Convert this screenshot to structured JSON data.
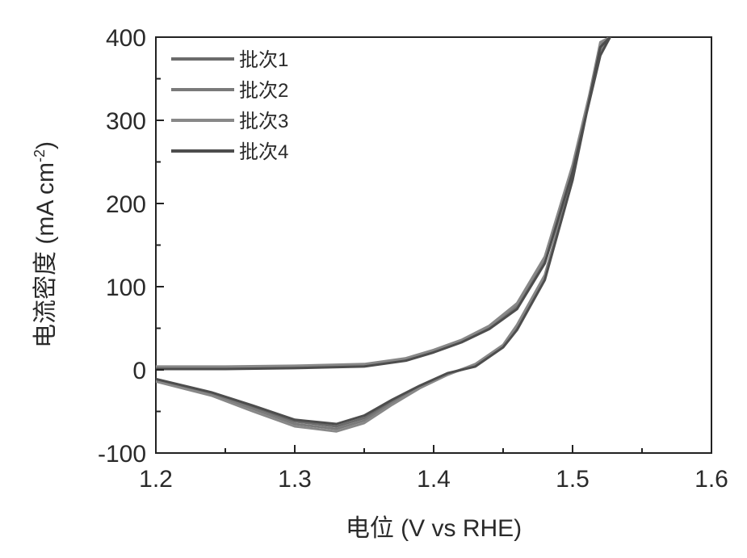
{
  "chart_data": {
    "type": "line",
    "title": "",
    "xlabel": "电位 (V vs RHE)",
    "ylabel_main": "电流密度 (mA cm",
    "ylabel_sup": "-2",
    "ylabel_close": ")",
    "xlim": [
      1.2,
      1.6
    ],
    "ylim": [
      -100,
      400
    ],
    "xticks": [
      1.2,
      1.3,
      1.4,
      1.5,
      1.6
    ],
    "xtick_labels": [
      "1.2",
      "1.3",
      "1.4",
      "1.5",
      "1.6"
    ],
    "yticks": [
      -100,
      0,
      100,
      200,
      300,
      400
    ],
    "ytick_labels": [
      "-100",
      "0",
      "100",
      "200",
      "300",
      "400"
    ],
    "grid": false,
    "legend_position": "top-left",
    "series": [
      {
        "name": "批次1",
        "color": "#6b6b6b",
        "forward": [
          [
            1.2,
            2
          ],
          [
            1.25,
            2
          ],
          [
            1.3,
            3
          ],
          [
            1.35,
            5
          ],
          [
            1.38,
            12
          ],
          [
            1.4,
            22
          ],
          [
            1.42,
            34
          ],
          [
            1.44,
            50
          ],
          [
            1.46,
            75
          ],
          [
            1.48,
            130
          ],
          [
            1.5,
            240
          ],
          [
            1.52,
            380
          ],
          [
            1.527,
            400
          ]
        ],
        "reverse": [
          [
            1.52,
            390
          ],
          [
            1.5,
            230
          ],
          [
            1.48,
            110
          ],
          [
            1.46,
            50
          ],
          [
            1.45,
            28
          ],
          [
            1.43,
            5
          ],
          [
            1.41,
            -5
          ],
          [
            1.39,
            -20
          ],
          [
            1.37,
            -38
          ],
          [
            1.35,
            -58
          ],
          [
            1.33,
            -68
          ],
          [
            1.3,
            -62
          ],
          [
            1.27,
            -45
          ],
          [
            1.24,
            -28
          ],
          [
            1.2,
            -12
          ]
        ]
      },
      {
        "name": "批次2",
        "color": "#7a7a7a",
        "forward": [
          [
            1.2,
            3
          ],
          [
            1.25,
            3
          ],
          [
            1.3,
            4
          ],
          [
            1.35,
            6
          ],
          [
            1.38,
            13
          ],
          [
            1.4,
            23
          ],
          [
            1.42,
            35
          ],
          [
            1.44,
            52
          ],
          [
            1.46,
            78
          ],
          [
            1.48,
            133
          ],
          [
            1.5,
            243
          ],
          [
            1.52,
            383
          ],
          [
            1.527,
            400
          ]
        ],
        "reverse": [
          [
            1.52,
            392
          ],
          [
            1.5,
            232
          ],
          [
            1.48,
            112
          ],
          [
            1.46,
            52
          ],
          [
            1.45,
            29
          ],
          [
            1.43,
            6
          ],
          [
            1.41,
            -5
          ],
          [
            1.39,
            -21
          ],
          [
            1.37,
            -40
          ],
          [
            1.35,
            -61
          ],
          [
            1.33,
            -71
          ],
          [
            1.3,
            -65
          ],
          [
            1.27,
            -47
          ],
          [
            1.24,
            -29
          ],
          [
            1.2,
            -13
          ]
        ]
      },
      {
        "name": "批次3",
        "color": "#888888",
        "forward": [
          [
            1.2,
            4
          ],
          [
            1.25,
            4
          ],
          [
            1.3,
            5
          ],
          [
            1.35,
            7
          ],
          [
            1.38,
            14
          ],
          [
            1.4,
            24
          ],
          [
            1.42,
            36
          ],
          [
            1.44,
            53
          ],
          [
            1.46,
            80
          ],
          [
            1.48,
            136
          ],
          [
            1.5,
            246
          ],
          [
            1.52,
            386
          ],
          [
            1.527,
            400
          ]
        ],
        "reverse": [
          [
            1.52,
            394
          ],
          [
            1.5,
            234
          ],
          [
            1.48,
            114
          ],
          [
            1.46,
            54
          ],
          [
            1.45,
            30
          ],
          [
            1.43,
            7
          ],
          [
            1.41,
            -6
          ],
          [
            1.39,
            -22
          ],
          [
            1.37,
            -42
          ],
          [
            1.35,
            -64
          ],
          [
            1.33,
            -74
          ],
          [
            1.3,
            -68
          ],
          [
            1.27,
            -50
          ],
          [
            1.24,
            -31
          ],
          [
            1.2,
            -14
          ]
        ]
      },
      {
        "name": "批次4",
        "color": "#4d4d4d",
        "forward": [
          [
            1.2,
            1
          ],
          [
            1.25,
            1
          ],
          [
            1.3,
            2
          ],
          [
            1.35,
            4
          ],
          [
            1.38,
            11
          ],
          [
            1.4,
            21
          ],
          [
            1.42,
            33
          ],
          [
            1.44,
            49
          ],
          [
            1.46,
            73
          ],
          [
            1.48,
            128
          ],
          [
            1.5,
            238
          ],
          [
            1.52,
            378
          ],
          [
            1.527,
            400
          ]
        ],
        "reverse": [
          [
            1.52,
            388
          ],
          [
            1.5,
            228
          ],
          [
            1.48,
            108
          ],
          [
            1.46,
            48
          ],
          [
            1.45,
            27
          ],
          [
            1.43,
            4
          ],
          [
            1.41,
            -4
          ],
          [
            1.39,
            -19
          ],
          [
            1.37,
            -36
          ],
          [
            1.35,
            -55
          ],
          [
            1.33,
            -65
          ],
          [
            1.3,
            -60
          ],
          [
            1.27,
            -43
          ],
          [
            1.24,
            -27
          ],
          [
            1.2,
            -11
          ]
        ]
      }
    ]
  }
}
